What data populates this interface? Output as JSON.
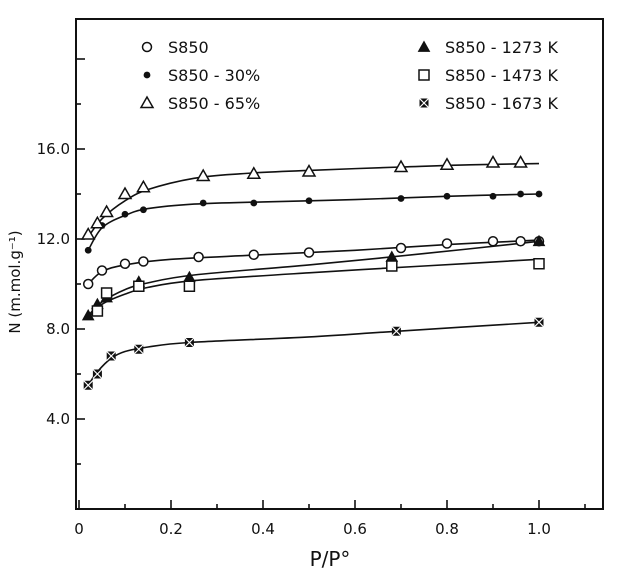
{
  "chart_data": {
    "type": "scatter",
    "xlabel": "P/P°",
    "ylabel": "N (m.mol.g⁻¹)",
    "xlim": [
      0,
      1.15
    ],
    "ylim": [
      0,
      20.2
    ],
    "x_ticks": [
      {
        "value": 0,
        "label": "0"
      },
      {
        "value": 0.2,
        "label": "0.2"
      },
      {
        "value": 0.4,
        "label": "0.4"
      },
      {
        "value": 0.6,
        "label": "0.6"
      },
      {
        "value": 0.8,
        "label": "0.8"
      },
      {
        "value": 1.0,
        "label": "1.0"
      }
    ],
    "y_ticks": [
      {
        "value": 4.0,
        "label": "4.0"
      },
      {
        "value": 8.0,
        "label": "8.0"
      },
      {
        "value": 12.0,
        "label": "12.0"
      },
      {
        "value": 16.0,
        "label": "16.0"
      }
    ],
    "grid": false,
    "legend_position": "top",
    "series": [
      {
        "name": "S850",
        "marker": "open-circle",
        "x": [
          0.02,
          0.05,
          0.1,
          0.14,
          0.26,
          0.38,
          0.5,
          0.7,
          0.8,
          0.9,
          0.96,
          1.0
        ],
        "y": [
          10.0,
          10.6,
          10.9,
          11.0,
          11.2,
          11.3,
          11.4,
          11.6,
          11.8,
          11.9,
          11.9,
          11.9
        ],
        "fit": [
          [
            0.02,
            10.0
          ],
          [
            0.05,
            10.55
          ],
          [
            0.1,
            10.85
          ],
          [
            0.2,
            11.1
          ],
          [
            0.4,
            11.3
          ],
          [
            0.6,
            11.5
          ],
          [
            0.8,
            11.75
          ],
          [
            1.0,
            11.95
          ]
        ]
      },
      {
        "name": "S850 - 30%",
        "marker": "filled-circle",
        "x": [
          0.02,
          0.05,
          0.1,
          0.14,
          0.27,
          0.38,
          0.5,
          0.7,
          0.8,
          0.9,
          0.96,
          1.0
        ],
        "y": [
          11.5,
          12.6,
          13.1,
          13.3,
          13.6,
          13.6,
          13.7,
          13.8,
          13.9,
          13.9,
          14.0,
          14.0
        ],
        "fit": [
          [
            0.02,
            11.5
          ],
          [
            0.05,
            12.5
          ],
          [
            0.1,
            13.05
          ],
          [
            0.15,
            13.35
          ],
          [
            0.25,
            13.55
          ],
          [
            0.4,
            13.65
          ],
          [
            0.6,
            13.75
          ],
          [
            0.8,
            13.9
          ],
          [
            1.0,
            14.0
          ]
        ]
      },
      {
        "name": "S850 - 65%",
        "marker": "open-triangle",
        "x": [
          0.02,
          0.04,
          0.06,
          0.1,
          0.14,
          0.27,
          0.38,
          0.5,
          0.7,
          0.8,
          0.9,
          0.96
        ],
        "y": [
          12.2,
          12.7,
          13.2,
          14.0,
          14.3,
          14.8,
          14.9,
          15.0,
          15.2,
          15.3,
          15.4,
          15.4
        ],
        "fit": [
          [
            0.02,
            12.1
          ],
          [
            0.05,
            12.9
          ],
          [
            0.1,
            13.7
          ],
          [
            0.15,
            14.2
          ],
          [
            0.25,
            14.7
          ],
          [
            0.35,
            14.9
          ],
          [
            0.5,
            15.05
          ],
          [
            0.7,
            15.2
          ],
          [
            0.85,
            15.3
          ],
          [
            1.0,
            15.35
          ]
        ]
      },
      {
        "name": "S850 - 1273 K",
        "marker": "filled-triangle",
        "x": [
          0.02,
          0.04,
          0.06,
          0.13,
          0.24,
          0.68,
          1.0
        ],
        "y": [
          8.6,
          9.1,
          9.4,
          10.1,
          10.3,
          11.2,
          11.9
        ],
        "fit": [
          [
            0.02,
            8.6
          ],
          [
            0.05,
            9.2
          ],
          [
            0.1,
            9.75
          ],
          [
            0.15,
            10.05
          ],
          [
            0.25,
            10.4
          ],
          [
            0.5,
            10.85
          ],
          [
            0.75,
            11.35
          ],
          [
            1.0,
            11.9
          ]
        ]
      },
      {
        "name": "S850 - 1473 K",
        "marker": "open-square",
        "x": [
          0.04,
          0.06,
          0.13,
          0.24,
          0.68,
          1.0
        ],
        "y": [
          8.8,
          9.6,
          9.9,
          9.9,
          10.8,
          10.9
        ],
        "fit": [
          [
            0.02,
            8.5
          ],
          [
            0.05,
            9.1
          ],
          [
            0.1,
            9.55
          ],
          [
            0.15,
            9.85
          ],
          [
            0.25,
            10.15
          ],
          [
            0.5,
            10.5
          ],
          [
            0.75,
            10.8
          ],
          [
            1.0,
            11.1
          ]
        ]
      },
      {
        "name": "S850 - 1673 K",
        "marker": "filled-square",
        "x": [
          0.02,
          0.04,
          0.07,
          0.13,
          0.24,
          0.69,
          1.0
        ],
        "y": [
          5.5,
          6.0,
          6.8,
          7.1,
          7.4,
          7.9,
          8.3
        ],
        "fit": [
          [
            0.02,
            5.5
          ],
          [
            0.04,
            6.1
          ],
          [
            0.07,
            6.7
          ],
          [
            0.1,
            7.0
          ],
          [
            0.15,
            7.2
          ],
          [
            0.24,
            7.4
          ],
          [
            0.5,
            7.65
          ],
          [
            0.69,
            7.9
          ],
          [
            1.0,
            8.3
          ]
        ]
      }
    ]
  }
}
